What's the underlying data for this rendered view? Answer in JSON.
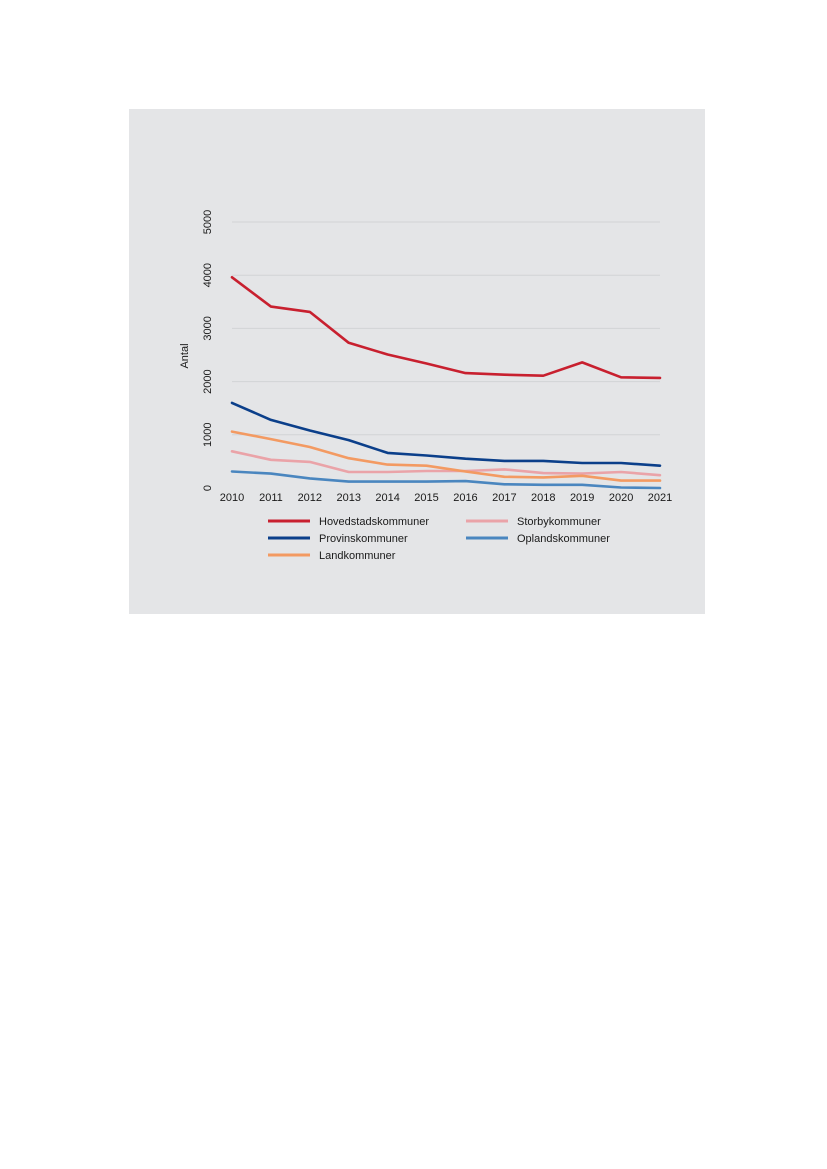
{
  "chart_data": {
    "type": "line",
    "title": "",
    "xlabel": "",
    "ylabel": "Antal",
    "x": [
      "2010",
      "2011",
      "2012",
      "2013",
      "2014",
      "2015",
      "2016",
      "2017",
      "2018",
      "2019",
      "2020",
      "2021"
    ],
    "ylim": [
      0,
      5000
    ],
    "yticks": [
      0,
      1000,
      2000,
      3000,
      4000,
      5000
    ],
    "grid": true,
    "legend_position": "bottom",
    "series": [
      {
        "name": "Hovedstadskommuner",
        "color": "#c8202f",
        "values": [
          3960,
          3410,
          3310,
          2730,
          2510,
          2340,
          2160,
          2130,
          2110,
          2360,
          2080,
          2070
        ]
      },
      {
        "name": "Storbykommuner",
        "color": "#eaa3a8",
        "values": [
          690,
          530,
          490,
          300,
          300,
          320,
          320,
          350,
          280,
          270,
          300,
          240
        ]
      },
      {
        "name": "Provinskommuner",
        "color": "#0b3f8a",
        "values": [
          1600,
          1280,
          1080,
          900,
          660,
          610,
          550,
          510,
          510,
          470,
          470,
          420
        ]
      },
      {
        "name": "Oplandskommuner",
        "color": "#4a86bf",
        "values": [
          310,
          270,
          180,
          120,
          120,
          120,
          130,
          70,
          60,
          60,
          10,
          0
        ]
      },
      {
        "name": "Landkommuner",
        "color": "#f39a62",
        "values": [
          1060,
          920,
          770,
          560,
          440,
          420,
          310,
          210,
          200,
          230,
          140,
          140
        ]
      }
    ]
  }
}
